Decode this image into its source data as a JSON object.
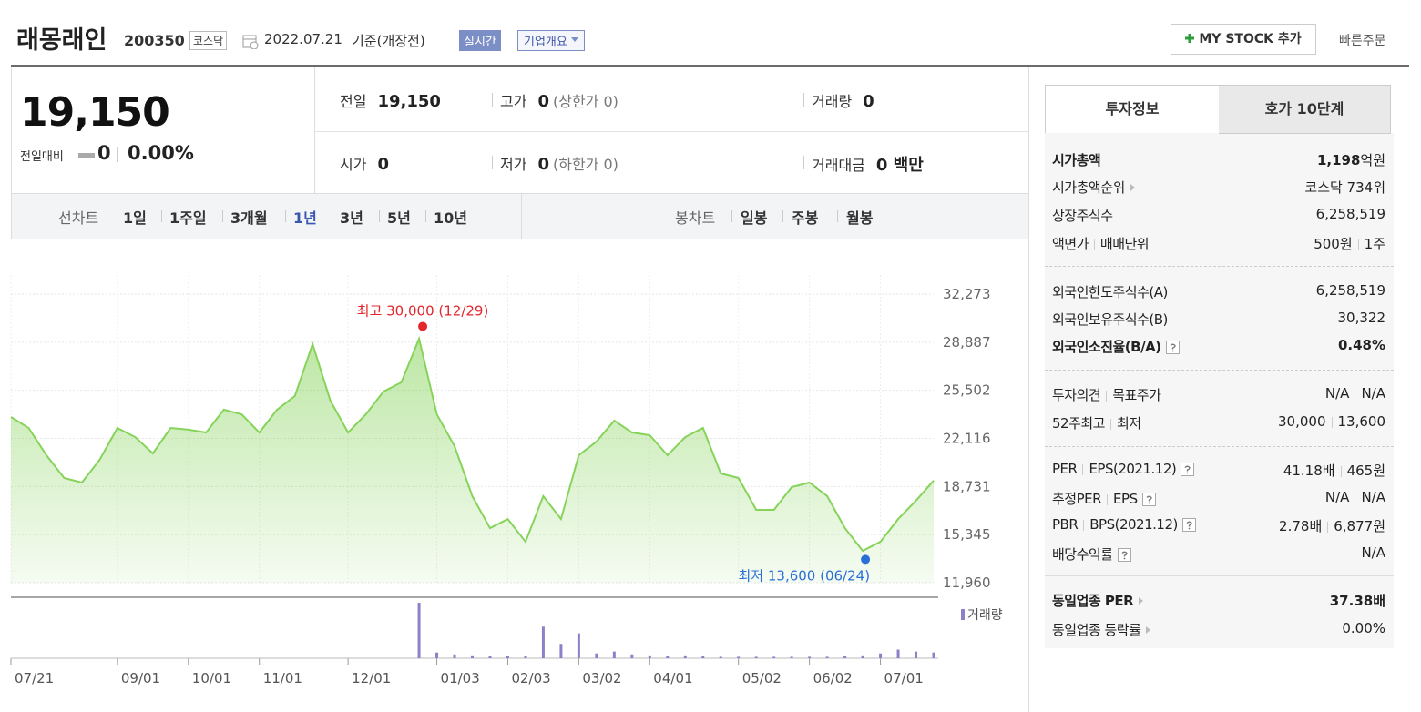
{
  "header": {
    "title": "래몽래인",
    "code": "200350",
    "market": "코스닥",
    "date": "2022.07.21",
    "basis": "기준(개장전)",
    "realtime": "실시간",
    "overview": "기업개요",
    "my_stock": "MY STOCK 추가",
    "quick_order": "빠른주문"
  },
  "quote": {
    "price": "19,150",
    "change_label": "전일대비",
    "change": "0",
    "change_rate": "0.00%",
    "rows": [
      [
        {
          "label": "전일",
          "value": "19,150"
        },
        {
          "label": "고가",
          "value": "0",
          "note": "(상한가 0)"
        },
        {
          "label": "거래량",
          "value": "0"
        }
      ],
      [
        {
          "label": "시가",
          "value": "0"
        },
        {
          "label": "저가",
          "value": "0",
          "note": "(하한가 0)"
        },
        {
          "label": "거래대금",
          "value": "0 백만"
        }
      ]
    ]
  },
  "chart_tabs": {
    "line_label": "선차트",
    "line_periods": [
      "1일",
      "1주일",
      "3개월",
      "1년",
      "3년",
      "5년",
      "10년"
    ],
    "selected": "1년",
    "candle_label": "봉차트",
    "candle_periods": [
      "일봉",
      "주봉",
      "월봉"
    ]
  },
  "chart_data": {
    "type": "line",
    "color": "#86d35a",
    "categories": [
      "07/21",
      null,
      null,
      null,
      null,
      null,
      "09/01",
      null,
      null,
      null,
      "10/01",
      null,
      null,
      null,
      "11/01",
      null,
      null,
      null,
      null,
      "12/01",
      null,
      null,
      null,
      null,
      "01/03",
      null,
      null,
      null,
      "02/03",
      null,
      null,
      null,
      "03/02",
      null,
      null,
      null,
      "04/01",
      null,
      null,
      null,
      null,
      "05/02",
      null,
      null,
      null,
      "06/02",
      null,
      null,
      null,
      "07/01",
      null,
      null,
      null
    ],
    "values": [
      23620,
      22850,
      20930,
      19330,
      19010,
      20610,
      22850,
      22210,
      21060,
      22850,
      22730,
      22530,
      24140,
      23810,
      22530,
      24140,
      25100,
      28750,
      24780,
      22530,
      23810,
      25420,
      26060,
      29130,
      23810,
      21570,
      18050,
      15800,
      16440,
      14840,
      18050,
      16440,
      20930,
      21890,
      23370,
      22530,
      22340,
      20930,
      22210,
      22850,
      19650,
      19330,
      17090,
      17090,
      18690,
      19010,
      18050,
      15800,
      14200,
      14840,
      16440,
      17730,
      19150
    ],
    "ylim": [
      11960,
      32273
    ],
    "yticks": [
      {
        "value": 11960,
        "label": "11,960"
      },
      {
        "value": 15345,
        "label": "15,345"
      },
      {
        "value": 18731,
        "label": "18,731"
      },
      {
        "value": 22116,
        "label": "22,116"
      },
      {
        "value": 25502,
        "label": "25,502"
      },
      {
        "value": 28887,
        "label": "28,887"
      },
      {
        "value": 32273,
        "label": "32,273"
      }
    ],
    "grid": true,
    "high": {
      "label": "최고 30,000 (12/29)",
      "value": 30000,
      "color": "#e3262b"
    },
    "low": {
      "label": "최저 13,600 (06/24)",
      "value": 13600,
      "color": "#2a6fd6"
    },
    "volume": {
      "name": "거래량",
      "color": "#8c80c8",
      "values": [
        0,
        0,
        0,
        0,
        0,
        0,
        0,
        0,
        0,
        0,
        0,
        0,
        0,
        0,
        0,
        0,
        0,
        0,
        0,
        0,
        0,
        0,
        0,
        580,
        60,
        40,
        30,
        25,
        20,
        25,
        330,
        150,
        260,
        50,
        70,
        40,
        30,
        25,
        30,
        25,
        15,
        15,
        15,
        15,
        15,
        15,
        15,
        20,
        30,
        50,
        90,
        70,
        60
      ]
    }
  },
  "info": {
    "tabs": [
      "투자정보",
      "호가 10단계"
    ],
    "sections": [
      [
        {
          "label": [
            "시가총액"
          ],
          "value": [
            "1,198"
          ],
          "unit": "억원",
          "bold": true
        },
        {
          "label": [
            "시가총액순위"
          ],
          "value": [
            "코스닥 734위"
          ],
          "arrow": true
        },
        {
          "label": [
            "상장주식수"
          ],
          "value": [
            "6,258,519"
          ]
        },
        {
          "label": [
            "액면가",
            "매매단위"
          ],
          "value": [
            "500원",
            "1주"
          ]
        }
      ],
      [
        {
          "label": [
            "외국인한도주식수(A)"
          ],
          "value": [
            "6,258,519"
          ]
        },
        {
          "label": [
            "외국인보유주식수(B)"
          ],
          "value": [
            "30,322"
          ]
        },
        {
          "label": [
            "외국인소진율(B/A)"
          ],
          "value": [
            "0.48%"
          ],
          "bold": true,
          "help": true
        }
      ],
      [
        {
          "label": [
            "투자의견",
            "목표주가"
          ],
          "value": [
            "N/A",
            "N/A"
          ]
        },
        {
          "label": [
            "52주최고",
            "최저"
          ],
          "value": [
            "30,000",
            "13,600"
          ]
        }
      ],
      [
        {
          "label": [
            "PER",
            "EPS(2021.12)"
          ],
          "value": [
            "41.18배",
            "465원"
          ],
          "help": true
        },
        {
          "label": [
            "추정PER",
            "EPS"
          ],
          "value": [
            "N/A",
            "N/A"
          ],
          "help": true
        },
        {
          "label": [
            "PBR",
            "BPS(2021.12)"
          ],
          "value": [
            "2.78배",
            "6,877원"
          ],
          "help": true
        },
        {
          "label": [
            "배당수익률"
          ],
          "value": [
            "N/A"
          ],
          "help": true
        }
      ],
      [
        {
          "label": [
            "동일업종 PER"
          ],
          "value": [
            "37.38배"
          ],
          "bold": true,
          "arrow": true
        },
        {
          "label": [
            "동일업종 등락률"
          ],
          "value": [
            "0.00%"
          ],
          "arrow": true
        }
      ]
    ]
  }
}
